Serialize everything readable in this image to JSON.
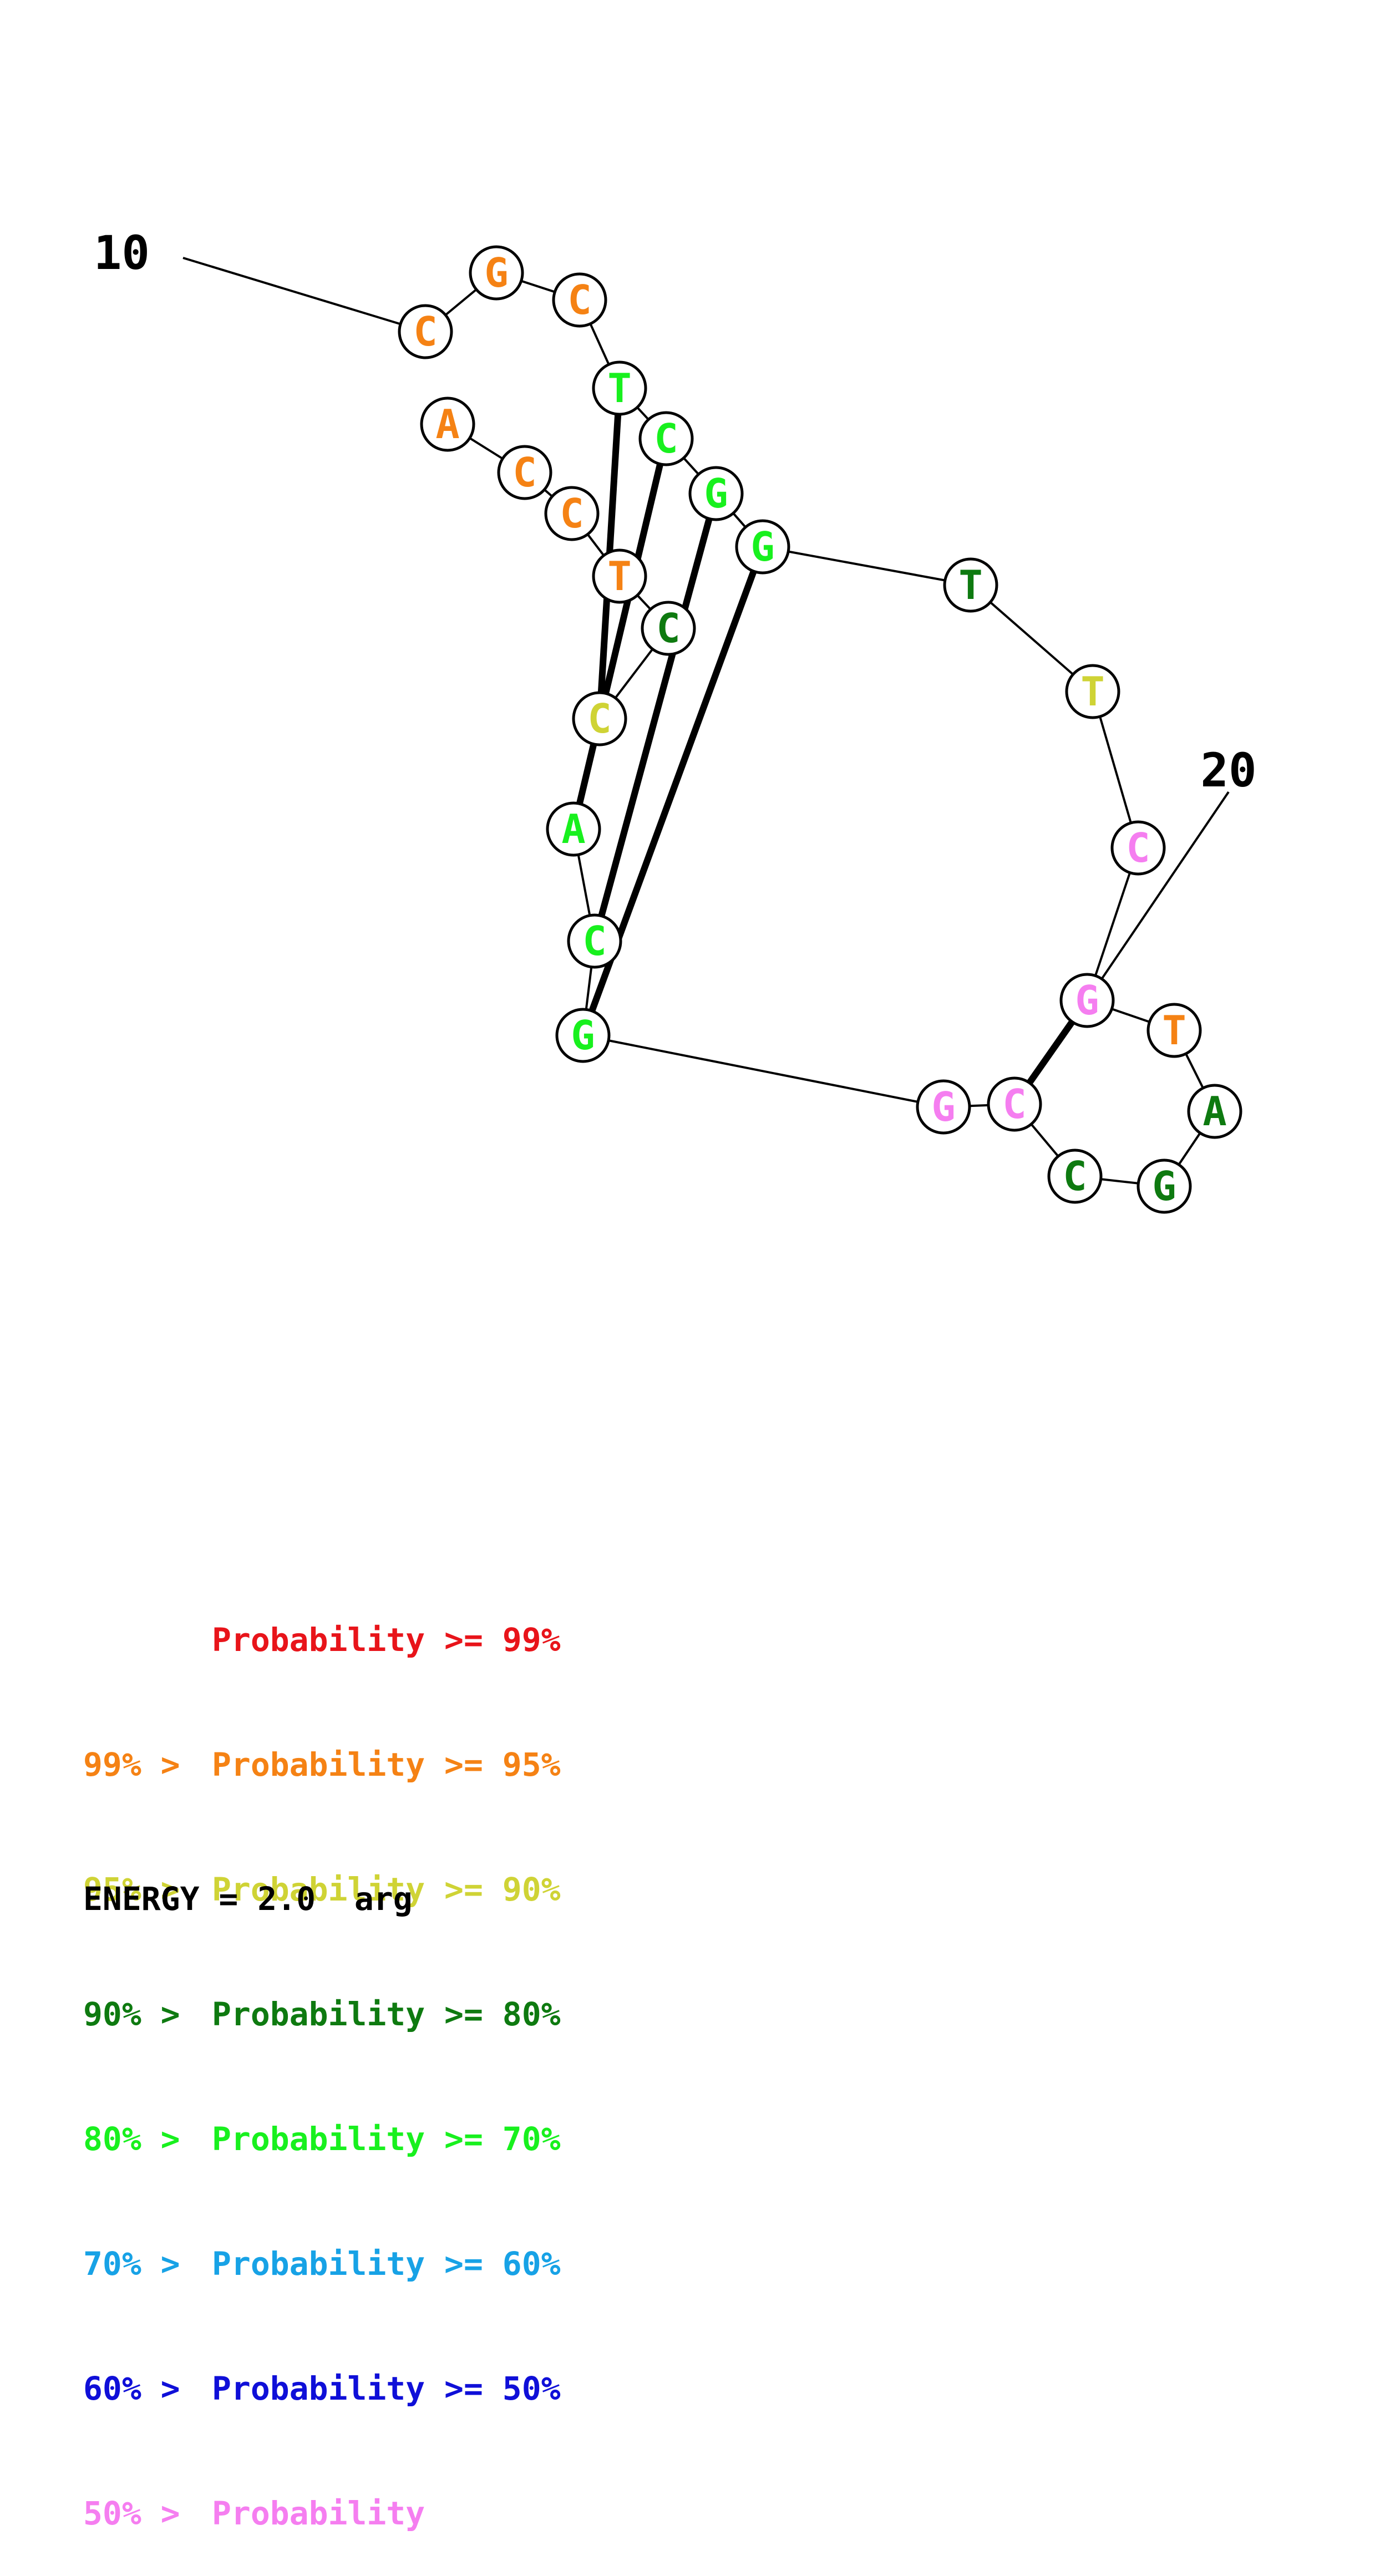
{
  "structure": {
    "sequence": [
      "C",
      "G",
      "C",
      "T",
      "C",
      "G",
      "G",
      "T",
      "T",
      "C",
      "G",
      "T",
      "A",
      "G",
      "C",
      "C",
      "G",
      "G",
      "C",
      "A",
      "C",
      "C",
      "T",
      "C",
      "C",
      "A"
    ],
    "tiers": [
      "orange",
      "orange",
      "orange",
      "green",
      "green",
      "green",
      "green",
      "darkgreen",
      "yellow",
      "pink",
      "pink",
      "orange",
      "darkgreen",
      "darkgreen",
      "darkgreen",
      "pink",
      "pink",
      "green",
      "green",
      "green",
      "yellow",
      "darkgreen",
      "orange",
      "orange",
      "orange",
      "orange"
    ],
    "pairs": [
      [
        4,
        21
      ],
      [
        5,
        20
      ],
      [
        6,
        19
      ],
      [
        7,
        18
      ],
      [
        11,
        16
      ]
    ],
    "position_labels": [
      {
        "base_index": 1,
        "text": "10"
      },
      {
        "base_index": 11,
        "text": "20"
      }
    ]
  },
  "legend": {
    "rows": [
      {
        "prefix": "",
        "label": "Probability >= 99%",
        "color": "#e8141a"
      },
      {
        "prefix": "99% > ",
        "label": "Probability >= 95%",
        "color": "#f58214"
      },
      {
        "prefix": "95% > ",
        "label": "Probability >= 90%",
        "color": "#cfd335"
      },
      {
        "prefix": "90% > ",
        "label": "Probability >= 80%",
        "color": "#0e7a10"
      },
      {
        "prefix": "80% > ",
        "label": "Probability >= 70%",
        "color": "#18f01e"
      },
      {
        "prefix": "70% > ",
        "label": "Probability >= 60%",
        "color": "#17a2e6"
      },
      {
        "prefix": "60% > ",
        "label": "Probability >= 50%",
        "color": "#0f0fd8"
      },
      {
        "prefix": "50% > ",
        "label": "Probability",
        "color": "#f57ef0"
      }
    ]
  },
  "energy_text": "ENERGY = 2.0  arg",
  "colors": {
    "orange": "#f58214",
    "yellow": "#cfd335",
    "darkgreen": "#0e7a10",
    "green": "#18f01e",
    "pink": "#f57ef0",
    "line": "#000000"
  }
}
